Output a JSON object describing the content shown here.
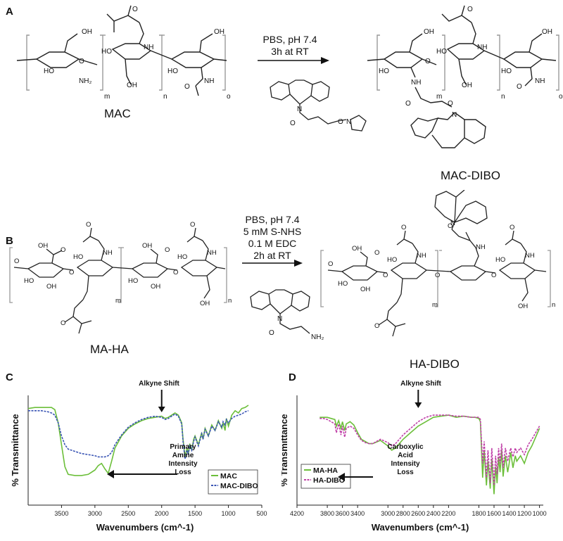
{
  "panels": {
    "a": {
      "letter": "A",
      "reactant_name": "MAC",
      "product_name": "MAC-DIBO",
      "conditions": [
        "PBS, pH 7.4",
        "3h at RT"
      ],
      "subscripts": [
        "m",
        "n",
        "o"
      ]
    },
    "b": {
      "letter": "B",
      "reactant_name": "MA-HA",
      "product_name": "HA-DIBO",
      "conditions": [
        "PBS, pH 7.4",
        "5 mM S-NHS",
        "0.1 M EDC",
        "2h at RT"
      ],
      "subscripts": [
        "m",
        "n"
      ]
    },
    "c": {
      "letter": "C"
    },
    "d": {
      "letter": "D"
    }
  },
  "chem_labels": {
    "oh": "OH",
    "ho": "HO",
    "o": "O",
    "nh": "NH",
    "nh2": "NH₂",
    "n": "N",
    "nh2_end": "NH₂"
  },
  "chart_data": [
    {
      "type": "line",
      "panel": "C",
      "xlabel": "Wavenumbers (cm^-1)",
      "ylabel": "% Transmittance",
      "xlim": [
        4000,
        500
      ],
      "x_reversed": true,
      "xticks": [
        3500,
        3000,
        2500,
        2000,
        1500,
        1000,
        500
      ],
      "yticks": [],
      "legend_position": "bottom-right",
      "colors": {
        "MAC": "#6cbf3a",
        "MAC-DIBO": "#3a55b4"
      },
      "annotations": [
        {
          "text": "Alkyne Shift",
          "x": 2000
        },
        {
          "text": "Primary Amine Intensity Loss",
          "lines": [
            "Primary",
            "Amine",
            "Intensity",
            "Loss"
          ],
          "x": 2900
        }
      ],
      "series": [
        {
          "name": "MAC",
          "x": [
            4000,
            3900,
            3800,
            3700,
            3650,
            3600,
            3550,
            3500,
            3450,
            3400,
            3300,
            3200,
            3100,
            3000,
            2950,
            2900,
            2850,
            2800,
            2750,
            2700,
            2600,
            2500,
            2400,
            2300,
            2200,
            2100,
            2000,
            1950,
            1900,
            1850,
            1800,
            1750,
            1700,
            1680,
            1650,
            1620,
            1600,
            1580,
            1550,
            1520,
            1500,
            1450,
            1400,
            1380,
            1350,
            1300,
            1250,
            1200,
            1150,
            1100,
            1080,
            1050,
            1030,
            1000,
            950,
            900,
            850,
            800,
            750,
            700
          ],
          "y": [
            88,
            89,
            89,
            89,
            89,
            87,
            75,
            55,
            35,
            28,
            27,
            27,
            28,
            32,
            36,
            38,
            33,
            29,
            40,
            52,
            63,
            70,
            74,
            77,
            79,
            80,
            81,
            79,
            80,
            82,
            84,
            82,
            75,
            60,
            44,
            52,
            47,
            56,
            50,
            60,
            63,
            55,
            66,
            60,
            70,
            63,
            73,
            68,
            77,
            70,
            75,
            68,
            79,
            72,
            82,
            86,
            84,
            88,
            89,
            91
          ]
        },
        {
          "name": "MAC-DIBO",
          "x": [
            4000,
            3900,
            3800,
            3700,
            3650,
            3600,
            3550,
            3500,
            3450,
            3400,
            3300,
            3200,
            3100,
            3000,
            2950,
            2900,
            2850,
            2800,
            2750,
            2700,
            2600,
            2500,
            2400,
            2300,
            2200,
            2100,
            2000,
            1950,
            1900,
            1850,
            1800,
            1750,
            1700,
            1680,
            1650,
            1620,
            1600,
            1580,
            1550,
            1520,
            1500,
            1450,
            1400,
            1380,
            1350,
            1300,
            1250,
            1200,
            1150,
            1100,
            1080,
            1050,
            1030,
            1000,
            950,
            900,
            850,
            800,
            750,
            700
          ],
          "y": [
            86,
            86,
            86,
            85,
            84,
            82,
            75,
            63,
            55,
            51,
            49,
            47,
            46,
            45,
            44,
            44,
            44,
            45,
            48,
            55,
            64,
            71,
            75,
            78,
            80,
            81,
            80,
            78,
            79,
            81,
            83,
            81,
            74,
            58,
            42,
            50,
            46,
            55,
            50,
            58,
            62,
            54,
            65,
            60,
            69,
            63,
            72,
            68,
            76,
            71,
            76,
            73,
            78,
            75,
            79,
            81,
            82,
            83,
            85,
            86
          ]
        }
      ]
    },
    {
      "type": "line",
      "panel": "D",
      "xlabel": "Wavenumbers (cm^-1)",
      "ylabel": "% Transmittance",
      "xlim": [
        4200,
        950
      ],
      "x_reversed": true,
      "xticks": [
        4200,
        3800,
        3600,
        3400,
        3000,
        2800,
        2600,
        2400,
        2200,
        1800,
        1600,
        1400,
        1200,
        1000
      ],
      "yticks": [],
      "legend_position": "bottom-left",
      "colors": {
        "MA-HA": "#6cbf3a",
        "HA-DIBO": "#c040a8"
      },
      "annotations": [
        {
          "text": "Alkyne Shift",
          "x": 2600
        },
        {
          "text": "Carboxylic Acid Intensity Loss",
          "lines": [
            "Carboxylic",
            "Acid",
            "Intensity",
            "Loss"
          ],
          "x": 1780
        }
      ],
      "series": [
        {
          "name": "MA-HA",
          "x": [
            3900,
            3850,
            3800,
            3750,
            3700,
            3680,
            3650,
            3620,
            3600,
            3570,
            3550,
            3500,
            3450,
            3400,
            3350,
            3300,
            3250,
            3200,
            3100,
            3000,
            2950,
            2900,
            2850,
            2800,
            2700,
            2600,
            2500,
            2400,
            2300,
            2200,
            2100,
            2000,
            1900,
            1850,
            1800,
            1780,
            1750,
            1730,
            1700,
            1680,
            1650,
            1630,
            1600,
            1580,
            1560,
            1540,
            1520,
            1500,
            1480,
            1450,
            1420,
            1400,
            1380,
            1350,
            1320,
            1300,
            1250,
            1200,
            1150,
            1100,
            1050,
            1000
          ],
          "y": [
            80,
            80,
            80,
            79,
            78,
            72,
            77,
            70,
            76,
            68,
            74,
            76,
            73,
            66,
            60,
            58,
            56,
            56,
            59,
            54,
            50,
            52,
            56,
            60,
            66,
            72,
            76,
            80,
            81,
            82,
            80,
            81,
            80,
            80,
            79,
            76,
            25,
            50,
            18,
            40,
            15,
            42,
            10,
            35,
            20,
            44,
            30,
            50,
            26,
            45,
            30,
            38,
            48,
            34,
            45,
            40,
            45,
            38,
            48,
            54,
            62,
            70
          ]
        },
        {
          "name": "HA-DIBO",
          "x": [
            3900,
            3850,
            3800,
            3750,
            3700,
            3680,
            3650,
            3620,
            3600,
            3570,
            3550,
            3500,
            3450,
            3400,
            3350,
            3300,
            3250,
            3200,
            3100,
            3000,
            2950,
            2900,
            2850,
            2800,
            2700,
            2600,
            2500,
            2400,
            2300,
            2200,
            2100,
            2000,
            1900,
            1850,
            1800,
            1780,
            1750,
            1730,
            1700,
            1680,
            1650,
            1630,
            1600,
            1580,
            1560,
            1540,
            1520,
            1500,
            1480,
            1450,
            1420,
            1400,
            1380,
            1350,
            1320,
            1300,
            1250,
            1200,
            1150,
            1100,
            1050,
            1000
          ],
          "y": [
            79,
            79,
            78,
            76,
            74,
            66,
            74,
            64,
            72,
            62,
            70,
            72,
            70,
            64,
            59,
            57,
            56,
            56,
            60,
            57,
            54,
            56,
            60,
            64,
            70,
            76,
            80,
            82,
            82,
            82,
            81,
            81,
            80,
            80,
            80,
            78,
            38,
            58,
            25,
            50,
            20,
            52,
            18,
            45,
            28,
            52,
            38,
            56,
            34,
            52,
            40,
            46,
            52,
            44,
            52,
            48,
            52,
            46,
            55,
            60,
            66,
            72
          ]
        }
      ]
    }
  ]
}
